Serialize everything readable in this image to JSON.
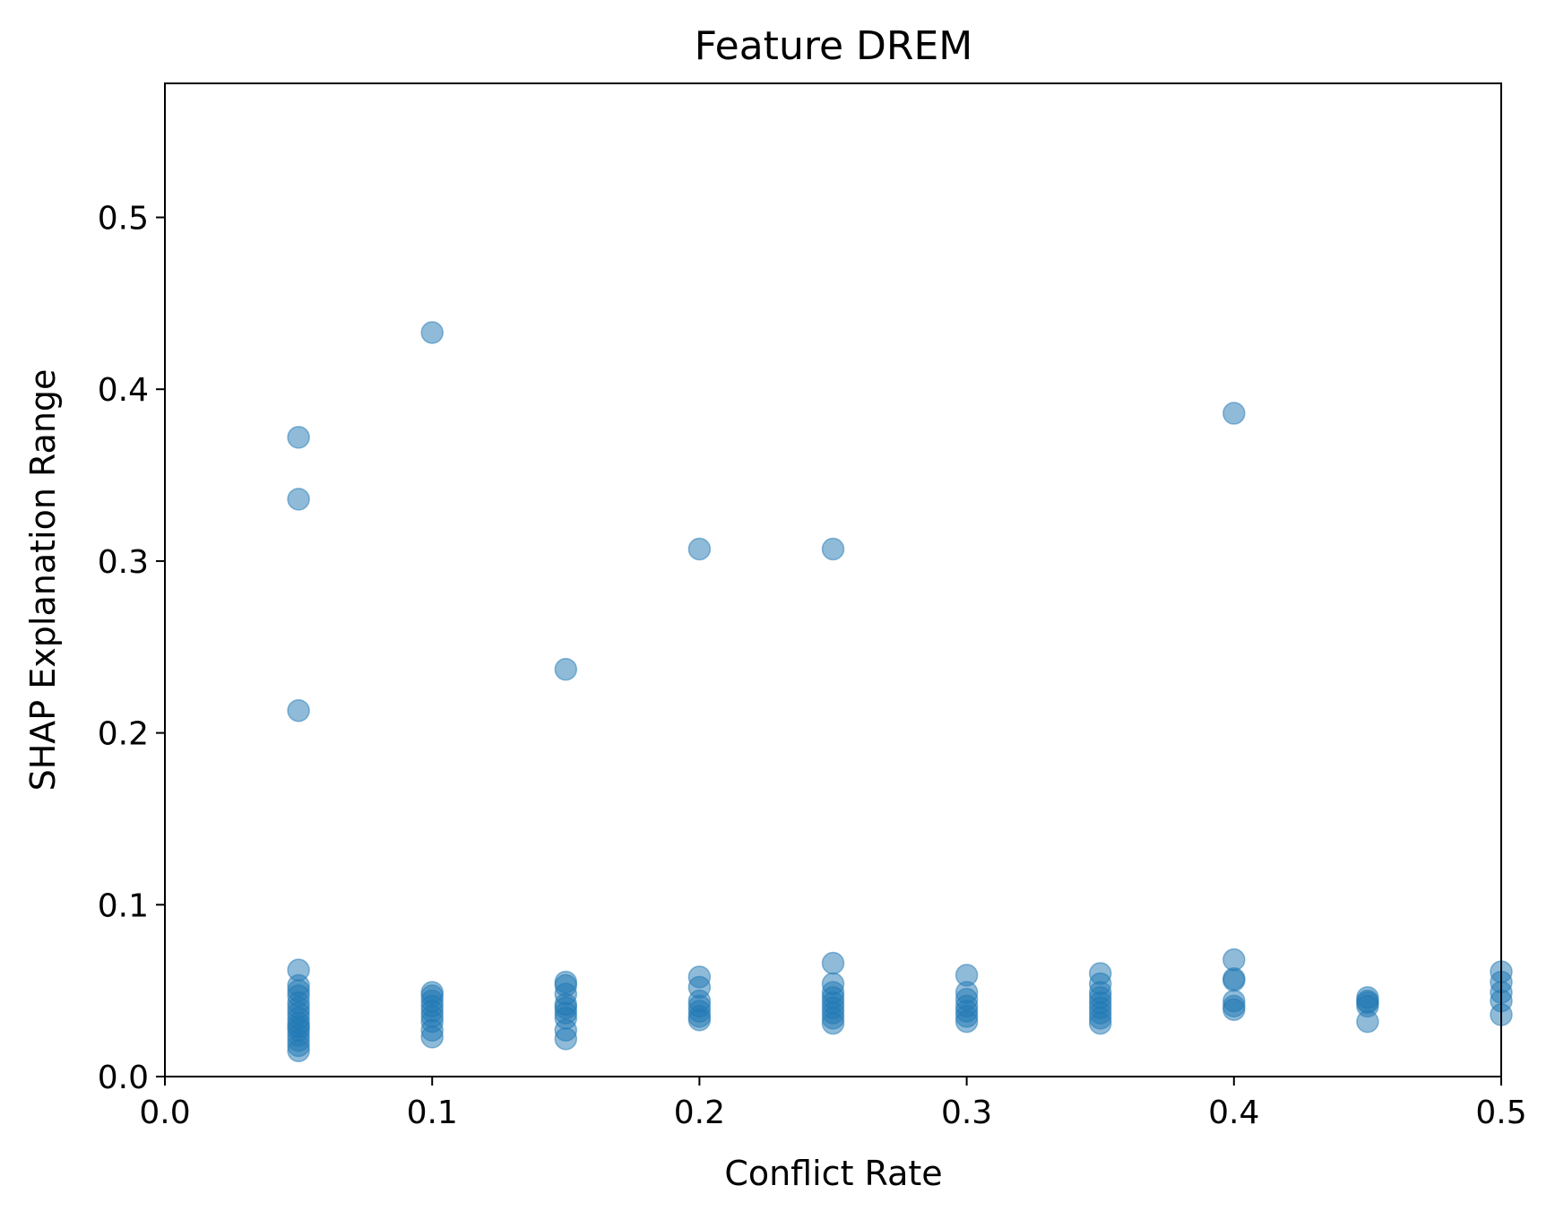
{
  "chart_data": {
    "type": "scatter",
    "title": "Feature DREM",
    "xlabel": "Conflict Rate",
    "ylabel": "SHAP Explanation Range",
    "xlim": [
      0.0,
      0.5
    ],
    "ylim": [
      0.0,
      0.578
    ],
    "xticks": [
      "0.0",
      "0.1",
      "0.2",
      "0.3",
      "0.4",
      "0.5"
    ],
    "yticks": [
      "0.0",
      "0.1",
      "0.2",
      "0.3",
      "0.4",
      "0.5"
    ],
    "grid": false,
    "marker_color": "#1f77b4",
    "marker_opacity": 0.5,
    "series": [
      {
        "x": [
          0.05,
          0.05,
          0.05,
          0.05,
          0.05,
          0.05,
          0.05,
          0.05,
          0.05,
          0.05,
          0.05,
          0.05,
          0.05,
          0.05,
          0.05,
          0.05,
          0.05,
          0.05,
          0.1,
          0.1,
          0.1,
          0.1,
          0.1,
          0.1,
          0.1,
          0.1,
          0.1,
          0.1,
          0.15,
          0.15,
          0.15,
          0.15,
          0.15,
          0.15,
          0.15,
          0.15,
          0.15,
          0.15,
          0.2,
          0.2,
          0.2,
          0.2,
          0.2,
          0.2,
          0.2,
          0.2,
          0.25,
          0.25,
          0.25,
          0.25,
          0.25,
          0.25,
          0.25,
          0.25,
          0.25,
          0.25,
          0.3,
          0.3,
          0.3,
          0.3,
          0.3,
          0.3,
          0.3,
          0.35,
          0.35,
          0.35,
          0.35,
          0.35,
          0.35,
          0.35,
          0.35,
          0.35,
          0.4,
          0.4,
          0.4,
          0.4,
          0.4,
          0.4,
          0.4,
          0.45,
          0.45,
          0.45,
          0.45,
          0.45,
          0.5,
          0.5,
          0.5,
          0.5,
          0.5
        ],
        "y": [
          0.372,
          0.336,
          0.213,
          0.062,
          0.053,
          0.05,
          0.047,
          0.043,
          0.04,
          0.037,
          0.034,
          0.031,
          0.029,
          0.027,
          0.024,
          0.021,
          0.018,
          0.015,
          0.433,
          0.049,
          0.047,
          0.044,
          0.041,
          0.038,
          0.035,
          0.032,
          0.027,
          0.023,
          0.237,
          0.055,
          0.053,
          0.048,
          0.042,
          0.04,
          0.037,
          0.034,
          0.027,
          0.022,
          0.307,
          0.058,
          0.052,
          0.044,
          0.041,
          0.038,
          0.035,
          0.033,
          0.066,
          0.054,
          0.049,
          0.046,
          0.043,
          0.04,
          0.037,
          0.034,
          0.031,
          0.307,
          0.059,
          0.049,
          0.045,
          0.041,
          0.038,
          0.035,
          0.032,
          0.06,
          0.054,
          0.049,
          0.046,
          0.043,
          0.04,
          0.037,
          0.034,
          0.031,
          0.386,
          0.068,
          0.057,
          0.056,
          0.044,
          0.041,
          0.039,
          0.046,
          0.044,
          0.043,
          0.041,
          0.032,
          0.061,
          0.055,
          0.049,
          0.044,
          0.036
        ]
      }
    ]
  }
}
